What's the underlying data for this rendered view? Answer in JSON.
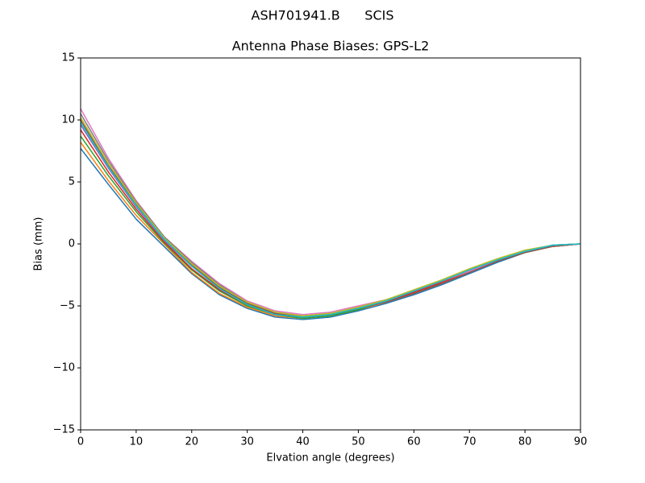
{
  "chart_data": {
    "type": "line",
    "suptitle": "ASH701941.B      SCIS",
    "title": "Antenna Phase Biases: GPS-L2",
    "xlabel": "Elvation angle (degrees)",
    "ylabel": "Bias (mm)",
    "x": [
      0,
      5,
      10,
      15,
      20,
      25,
      30,
      35,
      40,
      45,
      50,
      55,
      60,
      65,
      70,
      75,
      80,
      85,
      90
    ],
    "xlim": [
      0,
      90
    ],
    "xticks": [
      0,
      10,
      20,
      30,
      40,
      50,
      60,
      70,
      80,
      90
    ],
    "ylim": [
      -15,
      15
    ],
    "yticks": [
      {
        "value": -15,
        "label": "−15"
      },
      {
        "value": -10,
        "label": "−10"
      },
      {
        "value": -5,
        "label": "−5"
      },
      0,
      5,
      10,
      15
    ],
    "grid": false,
    "series": [
      {
        "color": "#1f77b4",
        "values": [
          7.7,
          4.8,
          2.0,
          -0.2,
          -2.4,
          -4.1,
          -5.2,
          -5.9,
          -6.1,
          -5.9,
          -5.4,
          -4.8,
          -4.1,
          -3.3,
          -2.4,
          -1.5,
          -0.7,
          -0.2,
          0
        ]
      },
      {
        "color": "#ff7f0e",
        "values": [
          8.2,
          5.1,
          2.3,
          0.0,
          -2.3,
          -4.0,
          -5.1,
          -5.8,
          -6.0,
          -5.8,
          -5.3,
          -4.7,
          -4.0,
          -3.2,
          -2.3,
          -1.4,
          -0.7,
          -0.2,
          0
        ]
      },
      {
        "color": "#2ca02c",
        "values": [
          8.7,
          5.5,
          2.6,
          0.1,
          -2.1,
          -3.8,
          -5.0,
          -5.7,
          -6.0,
          -5.8,
          -5.3,
          -4.6,
          -3.8,
          -3.0,
          -2.1,
          -1.3,
          -0.6,
          -0.1,
          0
        ]
      },
      {
        "color": "#d62728",
        "values": [
          9.2,
          5.8,
          2.8,
          0.2,
          -2.0,
          -3.7,
          -4.9,
          -5.7,
          -5.9,
          -5.7,
          -5.2,
          -4.6,
          -3.9,
          -3.1,
          -2.2,
          -1.4,
          -0.6,
          -0.2,
          0
        ]
      },
      {
        "color": "#9467bd",
        "values": [
          9.6,
          6.1,
          3.0,
          0.3,
          -1.8,
          -3.6,
          -4.8,
          -5.6,
          -5.9,
          -5.7,
          -5.2,
          -4.6,
          -3.8,
          -3.0,
          -2.1,
          -1.3,
          -0.6,
          -0.1,
          0
        ]
      },
      {
        "color": "#8c564b",
        "values": [
          10.0,
          6.3,
          3.2,
          0.4,
          -1.7,
          -3.5,
          -4.8,
          -5.6,
          -5.8,
          -5.7,
          -5.2,
          -4.7,
          -4.0,
          -3.2,
          -2.3,
          -1.4,
          -0.7,
          -0.2,
          0
        ]
      },
      {
        "color": "#e377c2",
        "values": [
          10.9,
          6.9,
          3.5,
          0.6,
          -1.4,
          -3.2,
          -4.6,
          -5.4,
          -5.7,
          -5.5,
          -5.0,
          -4.5,
          -3.8,
          -3.0,
          -2.2,
          -1.3,
          -0.6,
          -0.1,
          0
        ]
      },
      {
        "color": "#7f7f7f",
        "values": [
          10.5,
          6.7,
          3.4,
          0.6,
          -1.5,
          -3.3,
          -4.7,
          -5.5,
          -5.8,
          -5.6,
          -5.1,
          -4.5,
          -3.8,
          -3.0,
          -2.1,
          -1.3,
          -0.6,
          -0.1,
          0
        ]
      },
      {
        "color": "#bcbd22",
        "values": [
          10.2,
          6.5,
          3.3,
          0.5,
          -1.6,
          -3.4,
          -4.7,
          -5.5,
          -5.8,
          -5.6,
          -5.1,
          -4.5,
          -3.7,
          -2.9,
          -2.0,
          -1.2,
          -0.5,
          -0.1,
          0
        ]
      },
      {
        "color": "#17becf",
        "values": [
          9.8,
          6.2,
          3.1,
          0.4,
          -1.8,
          -3.6,
          -4.9,
          -5.7,
          -5.9,
          -5.7,
          -5.2,
          -4.6,
          -3.8,
          -3.0,
          -2.1,
          -1.3,
          -0.6,
          -0.1,
          0
        ]
      }
    ]
  }
}
